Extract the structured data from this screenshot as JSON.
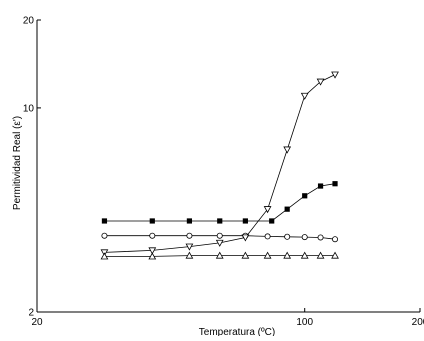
{
  "chart_data": {
    "type": "line",
    "xlabel": "Temperatura (ºC)",
    "ylabel": "Permitividad Real (ε')",
    "xscale": "log",
    "yscale": "log",
    "xlim": [
      20,
      200
    ],
    "ylim": [
      2,
      20
    ],
    "x_ticks": [
      {
        "value": 20,
        "label": "20"
      },
      {
        "value": 100,
        "label": "100"
      },
      {
        "value": 200,
        "label": "200"
      }
    ],
    "y_ticks": [
      {
        "value": 2,
        "label": "2"
      },
      {
        "value": 10,
        "label": "10"
      },
      {
        "value": 20,
        "label": "20"
      }
    ],
    "grid": false,
    "legend": "none",
    "series": [
      {
        "marker": "square-filled",
        "values": [
          [
            30,
            4.1
          ],
          [
            40,
            4.1
          ],
          [
            50,
            4.1
          ],
          [
            60,
            4.1
          ],
          [
            70,
            4.1
          ],
          [
            82,
            4.1
          ],
          [
            90,
            4.5
          ],
          [
            100,
            5.0
          ],
          [
            110,
            5.4
          ],
          [
            120,
            5.5
          ]
        ]
      },
      {
        "marker": "circle-open",
        "values": [
          [
            30,
            3.65
          ],
          [
            40,
            3.65
          ],
          [
            50,
            3.65
          ],
          [
            60,
            3.65
          ],
          [
            70,
            3.65
          ],
          [
            80,
            3.63
          ],
          [
            90,
            3.62
          ],
          [
            100,
            3.61
          ],
          [
            110,
            3.6
          ],
          [
            120,
            3.55
          ]
        ]
      },
      {
        "marker": "triangle-down-open",
        "values": [
          [
            30,
            3.2
          ],
          [
            40,
            3.25
          ],
          [
            50,
            3.35
          ],
          [
            60,
            3.45
          ],
          [
            70,
            3.6
          ],
          [
            80,
            4.5
          ],
          [
            90,
            7.2
          ],
          [
            100,
            11.0
          ],
          [
            110,
            12.3
          ],
          [
            120,
            13.0
          ]
        ]
      },
      {
        "marker": "triangle-up-open",
        "values": [
          [
            30,
            3.1
          ],
          [
            40,
            3.1
          ],
          [
            50,
            3.12
          ],
          [
            60,
            3.12
          ],
          [
            70,
            3.12
          ],
          [
            80,
            3.12
          ],
          [
            90,
            3.12
          ],
          [
            100,
            3.12
          ],
          [
            110,
            3.12
          ],
          [
            120,
            3.12
          ]
        ]
      }
    ]
  }
}
